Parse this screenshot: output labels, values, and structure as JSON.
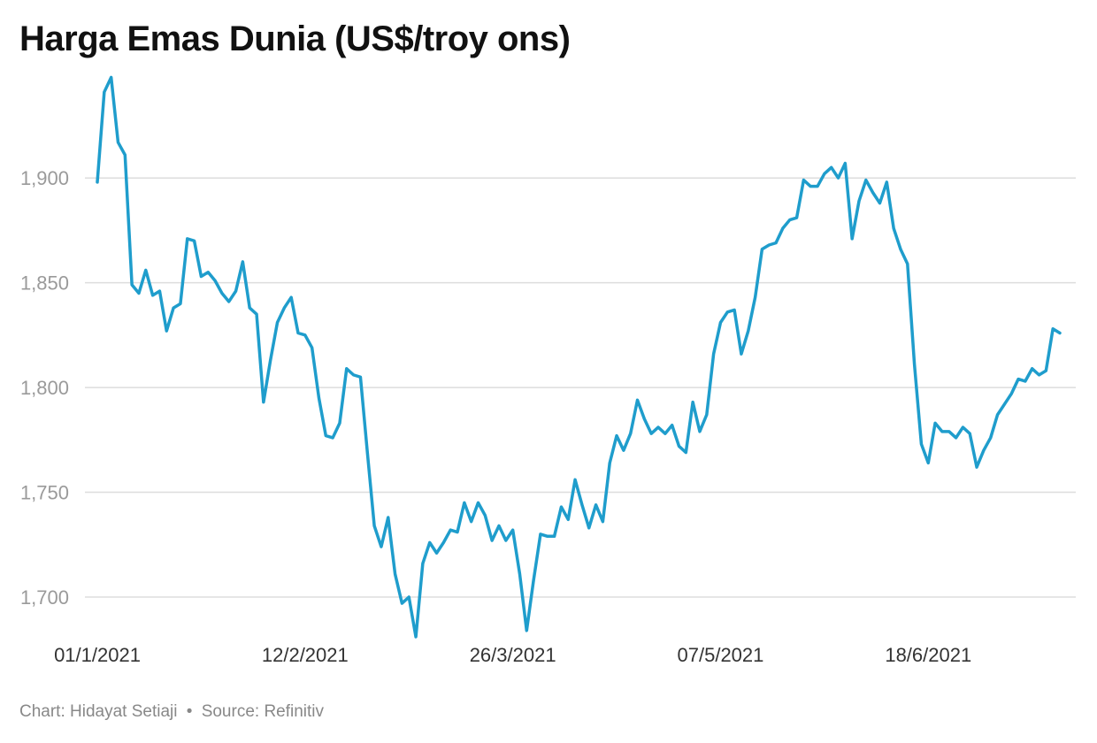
{
  "title": "Harga Emas Dunia (US$/troy ons)",
  "footer": {
    "chart_credit": "Chart: Hidayat Setiaji",
    "separator": "•",
    "source": "Source: Refinitiv"
  },
  "colors": {
    "line": "#1f9dcc",
    "grid": "#dddddd",
    "title": "#111111"
  },
  "chart_data": {
    "type": "line",
    "title": "Harga Emas Dunia (US$/troy ons)",
    "xlabel": "",
    "ylabel": "",
    "y_ticks": [
      1700,
      1750,
      1800,
      1850,
      1900
    ],
    "y_tick_labels": [
      "1,700",
      "1,750",
      "1,800",
      "1,850",
      "1,900"
    ],
    "ylim": [
      1681,
      1952
    ],
    "x_tick_labels": [
      "01/1/2021",
      "12/2/2021",
      "26/3/2021",
      "07/5/2021",
      "18/6/2021"
    ],
    "x_tick_index": [
      0,
      30,
      60,
      90,
      120
    ],
    "grid": true,
    "series": [
      {
        "values": [
          1898,
          1941,
          1948,
          1917,
          1911,
          1849,
          1845,
          1856,
          1844,
          1846,
          1827,
          1838,
          1840,
          1871,
          1870,
          1853,
          1855,
          1851,
          1845,
          1841,
          1846,
          1860,
          1838,
          1835,
          1793,
          1813,
          1831,
          1838,
          1843,
          1826,
          1825,
          1819,
          1795,
          1777,
          1776,
          1783,
          1809,
          1806,
          1805,
          1769,
          1734,
          1724,
          1738,
          1711,
          1697,
          1700,
          1681,
          1716,
          1726,
          1721,
          1726,
          1732,
          1731,
          1745,
          1736,
          1745,
          1739,
          1727,
          1734,
          1727,
          1732,
          1711,
          1684,
          1708,
          1730,
          1729,
          1729,
          1743,
          1737,
          1756,
          1744,
          1733,
          1744,
          1736,
          1764,
          1777,
          1770,
          1778,
          1794,
          1785,
          1778,
          1781,
          1778,
          1782,
          1772,
          1769,
          1793,
          1779,
          1787,
          1816,
          1831,
          1836,
          1837,
          1816,
          1827,
          1843,
          1866,
          1868,
          1869,
          1876,
          1880,
          1881,
          1899,
          1896,
          1896,
          1902,
          1905,
          1900,
          1907,
          1871,
          1889,
          1899,
          1893,
          1888,
          1898,
          1876,
          1866,
          1859,
          1811,
          1773,
          1764,
          1783,
          1779,
          1779,
          1776,
          1781,
          1778,
          1762,
          1770,
          1776,
          1787,
          1792,
          1797,
          1804,
          1803,
          1809,
          1806,
          1808,
          1828,
          1826
        ]
      }
    ]
  }
}
